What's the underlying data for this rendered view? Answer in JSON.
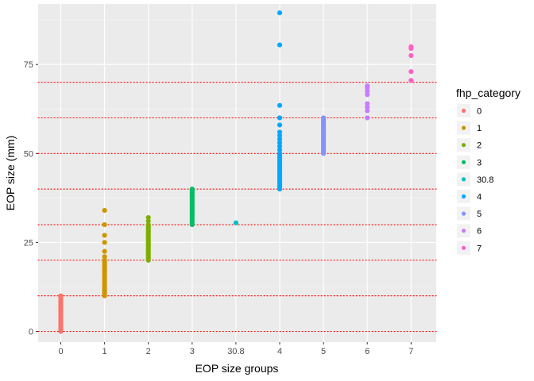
{
  "chart_data": {
    "type": "scatter",
    "xlabel": "EOP size groups",
    "ylabel": "EOP size (mm)",
    "categories": [
      "0",
      "1",
      "2",
      "3",
      "30.8",
      "4",
      "5",
      "6",
      "7"
    ],
    "y_ticks": [
      0,
      25,
      50,
      75
    ],
    "ylim": [
      -3,
      92
    ],
    "grid": true,
    "reference_lines": {
      "style": "dotted",
      "color": "#ff0000",
      "values": [
        0,
        10,
        20,
        30,
        40,
        50,
        60,
        70
      ]
    },
    "legend": {
      "title": "fhp_category",
      "placement": "right"
    },
    "series": [
      {
        "name": "0",
        "color": "#F8766D",
        "category": "0",
        "y": [
          0,
          0.5,
          1,
          1.5,
          2,
          2.5,
          3,
          3.5,
          4,
          4.5,
          5,
          5.5,
          6,
          6.5,
          7,
          7.5,
          8,
          8.5,
          9,
          9.5,
          10
        ]
      },
      {
        "name": "1",
        "color": "#CD9600",
        "category": "1",
        "y": [
          10,
          10.5,
          11,
          11.5,
          12,
          12.5,
          13,
          13.5,
          14,
          14.5,
          15,
          15.5,
          16,
          16.5,
          17,
          17.5,
          18,
          18.5,
          19,
          19.5,
          20,
          21,
          22.5,
          25,
          27,
          30,
          34
        ]
      },
      {
        "name": "2",
        "color": "#7CAE00",
        "category": "2",
        "y": [
          20,
          20.5,
          21,
          21.5,
          22,
          22.5,
          23,
          23.5,
          24,
          24.5,
          25,
          25.5,
          26,
          26.5,
          27,
          27.5,
          28,
          28.5,
          29,
          29.5,
          30,
          31,
          32
        ]
      },
      {
        "name": "3",
        "color": "#00BE67",
        "category": "3",
        "y": [
          30,
          30.5,
          31,
          31.5,
          32,
          32.5,
          33,
          33.5,
          34,
          34.5,
          35,
          35.5,
          36,
          36.5,
          37,
          37.5,
          38,
          38.5,
          39,
          39.5,
          40
        ]
      },
      {
        "name": "30.8",
        "color": "#00BFC4",
        "category": "30.8",
        "y": [
          30.5
        ]
      },
      {
        "name": "4",
        "color": "#00A9FF",
        "category": "4",
        "y": [
          40,
          40.5,
          41,
          41.5,
          42,
          42.5,
          43,
          43.5,
          44,
          44.5,
          45,
          45.5,
          46,
          46.5,
          47,
          47.5,
          48,
          48.5,
          49,
          49.5,
          50,
          51,
          52,
          53,
          54,
          55,
          56,
          58,
          60,
          63.5,
          80.5,
          89.5
        ]
      },
      {
        "name": "5",
        "color": "#8494FF",
        "category": "5",
        "y": [
          50,
          50.5,
          51,
          51.5,
          52,
          52.5,
          53,
          53.5,
          54,
          54.5,
          55,
          55.5,
          56,
          56.5,
          57,
          57.5,
          58,
          58.5,
          59,
          59.5,
          60
        ]
      },
      {
        "name": "6",
        "color": "#C77CFF",
        "category": "6",
        "y": [
          60,
          62,
          63,
          64,
          66.5,
          67.5,
          68.5,
          69
        ]
      },
      {
        "name": "7",
        "color": "#FF61C3",
        "category": "7",
        "y": [
          70.5,
          73,
          77.5,
          79.5,
          80
        ]
      }
    ]
  }
}
